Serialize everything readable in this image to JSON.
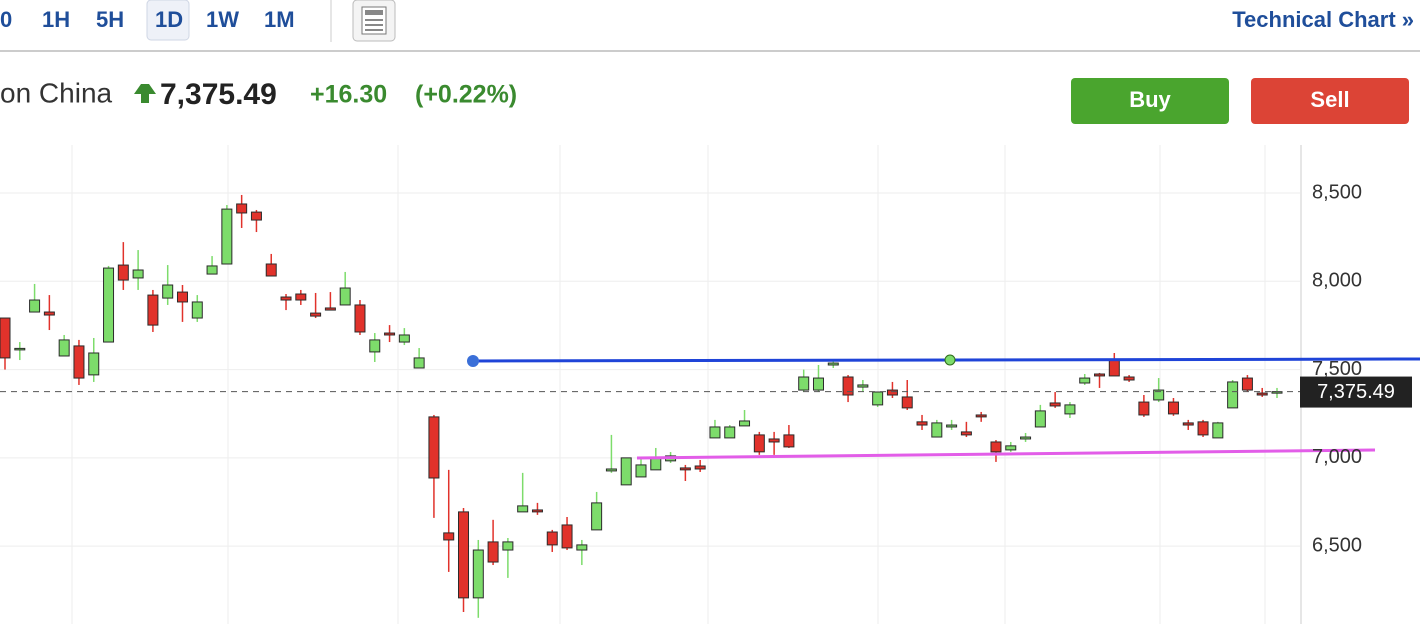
{
  "toolbar": {
    "intervals": [
      "0",
      "1H",
      "5H",
      "1D",
      "1W",
      "1M"
    ],
    "link": "Technical Chart »"
  },
  "header": {
    "name": "on China",
    "price": "7,375.49",
    "change": "+16.30",
    "change_pct": "(+0.22%)"
  },
  "buttons": {
    "buy": "Buy",
    "sell": "Sell"
  },
  "chart_data": {
    "type": "candlestick",
    "open": [
      7792,
      7614,
      7826,
      7826,
      7577,
      7634,
      7470,
      7656,
      8092,
      8019,
      7922,
      7905,
      7939,
      7792,
      8041,
      8098,
      8438,
      8392,
      8098,
      7911,
      7928,
      7820,
      7849,
      7866,
      7866,
      7600,
      7707,
      7656,
      7509,
      7232,
      6575,
      6694,
      6207,
      6524,
      6478,
      6694,
      6705,
      6580,
      6620,
      6478,
      6592,
      6926,
      6847,
      6892,
      6932,
      6983,
      6943,
      6954,
      7113,
      7113,
      7181,
      7130,
      7107,
      7130,
      7384,
      7384,
      7526,
      7458,
      7401,
      7300,
      7384,
      7345,
      7204,
      7118,
      7175,
      7147,
      7243,
      7090,
      7045,
      7107,
      7175,
      7311,
      7249,
      7424,
      7475,
      7554,
      7458,
      7316,
      7328,
      7316,
      7198,
      7204,
      7113,
      7283,
      7452,
      7367,
      7367
    ],
    "high": [
      7792,
      7656,
      7985,
      7922,
      7696,
      7668,
      7679,
      8087,
      8222,
      8177,
      7951,
      8092,
      7979,
      7922,
      8143,
      8432,
      8489,
      8404,
      8155,
      7928,
      7951,
      7934,
      7939,
      8053,
      7894,
      7707,
      7752,
      7735,
      7622,
      7243,
      6932,
      6716,
      6535,
      6649,
      6546,
      6915,
      6745,
      6592,
      6665,
      6535,
      6807,
      7130,
      7000,
      7000,
      7056,
      7033,
      6960,
      6988,
      7215,
      7186,
      7271,
      7147,
      7147,
      7186,
      7500,
      7526,
      7554,
      7469,
      7441,
      7373,
      7430,
      7441,
      7243,
      7215,
      7215,
      7204,
      7260,
      7101,
      7090,
      7141,
      7300,
      7373,
      7316,
      7475,
      7481,
      7594,
      7469,
      7356,
      7452,
      7339,
      7215,
      7215,
      7204,
      7441,
      7469,
      7396,
      7396
    ],
    "low": [
      7500,
      7554,
      7826,
      7724,
      7577,
      7413,
      7430,
      7656,
      7951,
      7951,
      7713,
      7866,
      7770,
      7770,
      8041,
      8098,
      8302,
      8279,
      8030,
      7837,
      7866,
      7792,
      7837,
      7866,
      7696,
      7543,
      7656,
      7639,
      7509,
      6660,
      6354,
      6127,
      6094,
      6393,
      6320,
      6694,
      6677,
      6467,
      6478,
      6393,
      6592,
      6915,
      6847,
      6892,
      6932,
      6971,
      6869,
      6920,
      7113,
      7113,
      7181,
      7017,
      7017,
      7056,
      7373,
      7373,
      7509,
      7316,
      7373,
      7288,
      7339,
      7271,
      7158,
      7118,
      7158,
      7118,
      7204,
      6977,
      7034,
      7090,
      7175,
      7283,
      7226,
      7413,
      7396,
      7464,
      7430,
      7232,
      7316,
      7238,
      7158,
      7118,
      7113,
      7283,
      7373,
      7345,
      7339
    ],
    "close": [
      7566,
      7620,
      7894,
      7809,
      7668,
      7452,
      7594,
      8075,
      8007,
      8064,
      7752,
      7979,
      7883,
      7883,
      8087,
      8409,
      8387,
      8347,
      8030,
      7894,
      7894,
      7803,
      7837,
      7962,
      7713,
      7668,
      7696,
      7696,
      7566,
      6886,
      6535,
      6207,
      6478,
      6410,
      6524,
      6728,
      6694,
      6507,
      6490,
      6507,
      6745,
      6937,
      7000,
      6960,
      7000,
      7011,
      6932,
      6937,
      7175,
      7175,
      7209,
      7034,
      7090,
      7062,
      7458,
      7452,
      7537,
      7356,
      7413,
      7373,
      7356,
      7283,
      7186,
      7198,
      7186,
      7130,
      7232,
      7034,
      7068,
      7118,
      7266,
      7294,
      7300,
      7452,
      7464,
      7464,
      7441,
      7243,
      7384,
      7249,
      7186,
      7130,
      7198,
      7430,
      7384,
      7356,
      7375
    ],
    "up_color": "#7ddc6b",
    "down_color": "#e1322b",
    "ylim": [
      6059,
      8772
    ],
    "yticks": [
      {
        "value": 6500,
        "label": "6,500"
      },
      {
        "value": 7000,
        "label": "7,000"
      },
      {
        "value": 7500,
        "label": "7,500"
      },
      {
        "value": 8000,
        "label": "8,000"
      },
      {
        "value": 8500,
        "label": "8,500"
      }
    ],
    "grid": true,
    "last": {
      "value": 7375.49,
      "label": "7,375.49"
    }
  }
}
